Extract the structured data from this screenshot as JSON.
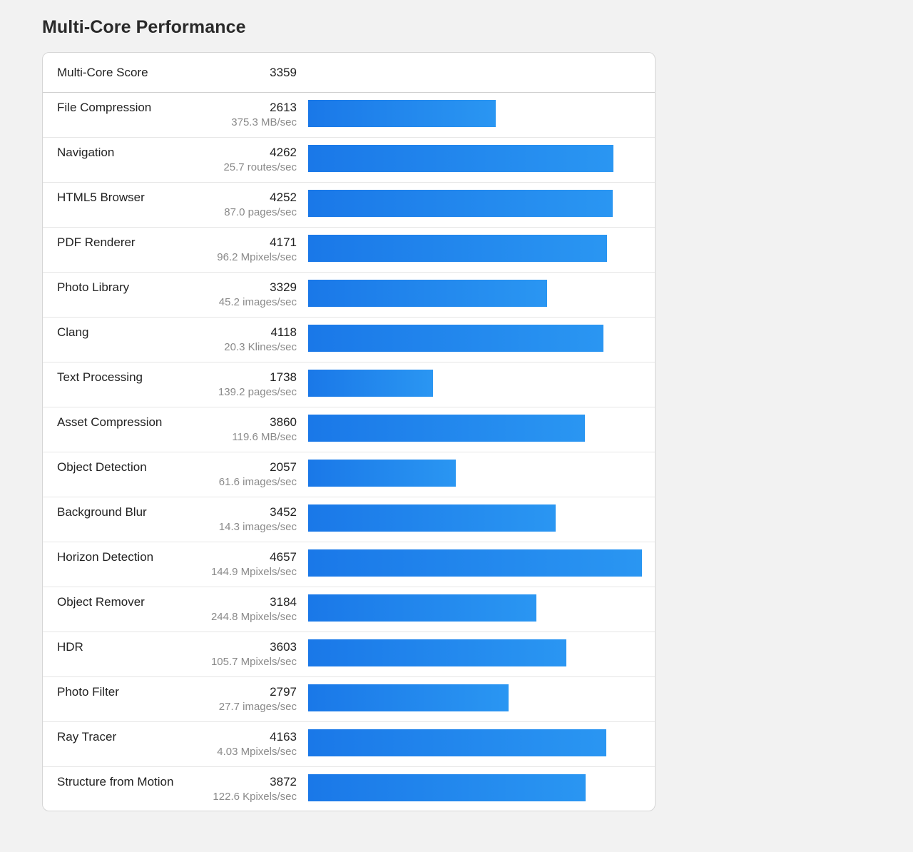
{
  "title": "Multi-Core Performance",
  "summary": {
    "label": "Multi-Core Score",
    "score": "3359"
  },
  "bar_color": "#1f86ee",
  "chart_data": {
    "type": "bar",
    "orientation": "horizontal",
    "max_value": 4657,
    "categories": [
      "File Compression",
      "Navigation",
      "HTML5 Browser",
      "PDF Renderer",
      "Photo Library",
      "Clang",
      "Text Processing",
      "Asset Compression",
      "Object Detection",
      "Background Blur",
      "Horizon Detection",
      "Object Remover",
      "HDR",
      "Photo Filter",
      "Ray Tracer",
      "Structure from Motion"
    ],
    "values": [
      2613,
      4262,
      4252,
      4171,
      3329,
      4118,
      1738,
      3860,
      2057,
      3452,
      4657,
      3184,
      3603,
      2797,
      4163,
      3872
    ]
  },
  "rows": [
    {
      "name": "File Compression",
      "score": "2613",
      "rate": "375.3 MB/sec"
    },
    {
      "name": "Navigation",
      "score": "4262",
      "rate": "25.7 routes/sec"
    },
    {
      "name": "HTML5 Browser",
      "score": "4252",
      "rate": "87.0 pages/sec"
    },
    {
      "name": "PDF Renderer",
      "score": "4171",
      "rate": "96.2 Mpixels/sec"
    },
    {
      "name": "Photo Library",
      "score": "3329",
      "rate": "45.2 images/sec"
    },
    {
      "name": "Clang",
      "score": "4118",
      "rate": "20.3 Klines/sec"
    },
    {
      "name": "Text Processing",
      "score": "1738",
      "rate": "139.2 pages/sec"
    },
    {
      "name": "Asset Compression",
      "score": "3860",
      "rate": "119.6 MB/sec"
    },
    {
      "name": "Object Detection",
      "score": "2057",
      "rate": "61.6 images/sec"
    },
    {
      "name": "Background Blur",
      "score": "3452",
      "rate": "14.3 images/sec"
    },
    {
      "name": "Horizon Detection",
      "score": "4657",
      "rate": "144.9 Mpixels/sec"
    },
    {
      "name": "Object Remover",
      "score": "3184",
      "rate": "244.8 Mpixels/sec"
    },
    {
      "name": "HDR",
      "score": "3603",
      "rate": "105.7 Mpixels/sec"
    },
    {
      "name": "Photo Filter",
      "score": "2797",
      "rate": "27.7 images/sec"
    },
    {
      "name": "Ray Tracer",
      "score": "4163",
      "rate": "4.03 Mpixels/sec"
    },
    {
      "name": "Structure from Motion",
      "score": "3872",
      "rate": "122.6 Kpixels/sec"
    }
  ]
}
